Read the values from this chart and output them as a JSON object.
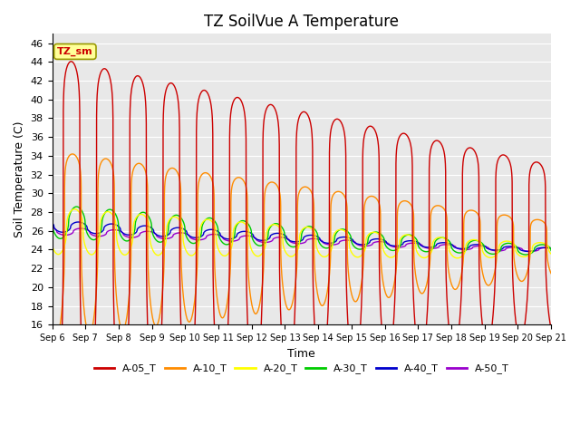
{
  "title": "TZ SoilVue A Temperature",
  "xlabel": "Time",
  "ylabel": "Soil Temperature (C)",
  "ylim": [
    16,
    47
  ],
  "yticks": [
    16,
    18,
    20,
    22,
    24,
    26,
    28,
    30,
    32,
    34,
    36,
    38,
    40,
    42,
    44,
    46
  ],
  "series": {
    "A-05_T": {
      "color": "#CC0000",
      "lw": 1.0
    },
    "A-10_T": {
      "color": "#FF8C00",
      "lw": 1.0
    },
    "A-20_T": {
      "color": "#FFFF00",
      "lw": 1.0
    },
    "A-30_T": {
      "color": "#00CC00",
      "lw": 1.0
    },
    "A-40_T": {
      "color": "#0000CC",
      "lw": 1.0
    },
    "A-50_T": {
      "color": "#9900CC",
      "lw": 1.0
    }
  },
  "legend_label": "TZ_sm",
  "legend_box_color": "#FFFF99",
  "legend_text_color": "#CC0000",
  "background_plot": "#E8E8E8",
  "background_fig": "#FFFFFF",
  "grid_color": "#FFFFFF",
  "title_fontsize": 12
}
